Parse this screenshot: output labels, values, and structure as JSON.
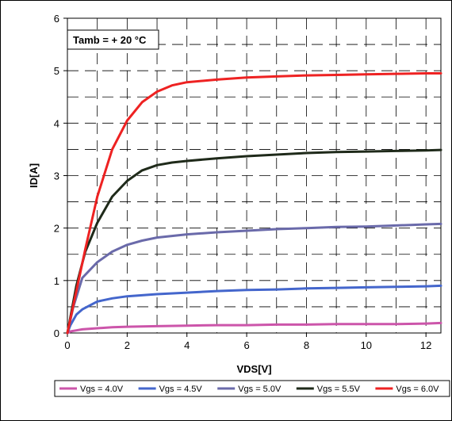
{
  "chart_data": {
    "type": "line",
    "title": "",
    "xlabel": "VDS[V]",
    "ylabel": "ID[A]",
    "xlim": [
      0,
      12.5
    ],
    "ylim": [
      0,
      6
    ],
    "x_ticks": [
      0,
      2,
      4,
      6,
      8,
      10,
      12
    ],
    "y_ticks": [
      0,
      1,
      2,
      3,
      4,
      5,
      6
    ],
    "grid": "dashed, major and minor",
    "legend_position": "bottom",
    "annotation": "Tamb = + 20 °C",
    "series": [
      {
        "name": "Vgs = 4.0V",
        "color": "#cc55aa",
        "x": [
          0,
          0.1,
          0.3,
          0.5,
          1,
          1.5,
          2,
          3,
          4,
          5,
          6,
          7,
          8,
          9,
          10,
          11,
          12,
          12.5
        ],
        "y": [
          0,
          0.03,
          0.05,
          0.07,
          0.09,
          0.11,
          0.12,
          0.13,
          0.14,
          0.15,
          0.15,
          0.16,
          0.16,
          0.17,
          0.17,
          0.17,
          0.18,
          0.19
        ]
      },
      {
        "name": "Vgs = 4.5V",
        "color": "#4466cc",
        "x": [
          0,
          0.1,
          0.3,
          0.5,
          1,
          1.5,
          2,
          3,
          4,
          5,
          6,
          7,
          8,
          9,
          10,
          11,
          12,
          12.5
        ],
        "y": [
          0,
          0.15,
          0.35,
          0.45,
          0.6,
          0.66,
          0.7,
          0.74,
          0.77,
          0.8,
          0.82,
          0.83,
          0.85,
          0.86,
          0.87,
          0.88,
          0.89,
          0.9
        ]
      },
      {
        "name": "Vgs = 5.0V",
        "color": "#6a6aaa",
        "x": [
          0,
          0.2,
          0.5,
          1,
          1.5,
          2,
          2.5,
          3,
          4,
          5,
          6,
          7,
          8,
          9,
          10,
          11,
          12,
          12.5
        ],
        "y": [
          0,
          0.5,
          1.05,
          1.35,
          1.55,
          1.68,
          1.76,
          1.82,
          1.88,
          1.92,
          1.95,
          1.98,
          2.0,
          2.02,
          2.03,
          2.05,
          2.07,
          2.08
        ]
      },
      {
        "name": "Vgs = 5.5V",
        "color": "#1f2a1a",
        "x": [
          0,
          0.3,
          0.6,
          1,
          1.5,
          2,
          2.5,
          3,
          3.5,
          4,
          5,
          6,
          7,
          8,
          9,
          10,
          11,
          12,
          12.5
        ],
        "y": [
          0,
          0.9,
          1.55,
          2.1,
          2.6,
          2.9,
          3.1,
          3.2,
          3.25,
          3.28,
          3.33,
          3.37,
          3.4,
          3.43,
          3.45,
          3.46,
          3.47,
          3.48,
          3.49
        ]
      },
      {
        "name": "Vgs = 6.0V",
        "color": "#ee2222",
        "x": [
          0,
          0.3,
          0.6,
          1,
          1.5,
          2,
          2.5,
          3,
          3.5,
          4,
          5,
          6,
          7,
          8,
          9,
          10,
          11,
          12,
          12.5
        ],
        "y": [
          0,
          0.8,
          1.6,
          2.6,
          3.5,
          4.05,
          4.4,
          4.6,
          4.72,
          4.78,
          4.83,
          4.87,
          4.89,
          4.91,
          4.92,
          4.93,
          4.94,
          4.95,
          4.95
        ]
      }
    ]
  }
}
